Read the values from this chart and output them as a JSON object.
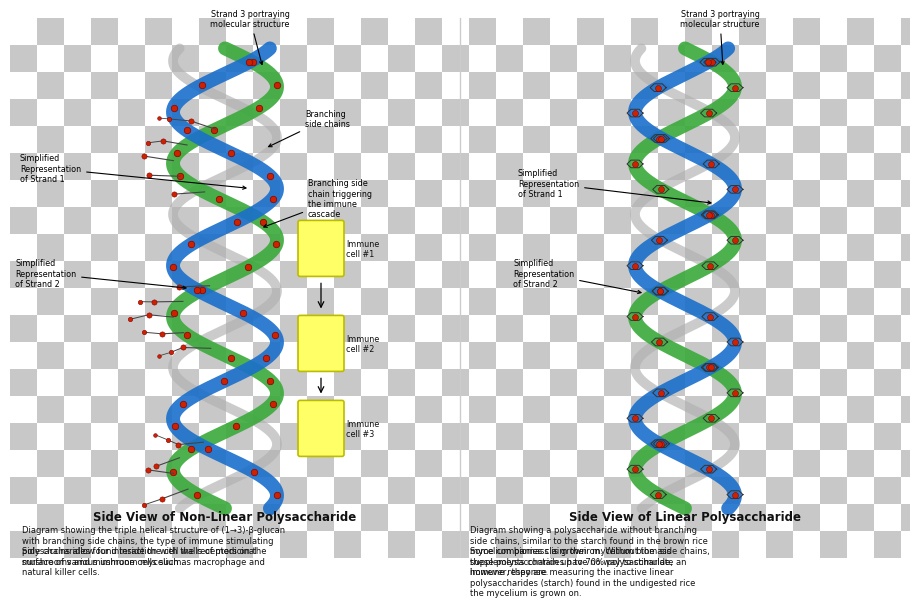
{
  "bg_checker1": "#c8c8c8",
  "bg_checker2": "#ffffff",
  "left_title": "Side View of Non-Linear Polysaccharide",
  "right_title": "Side View of Linear Polysaccharide",
  "left_desc1": "Diagram showing the triple helical structure of (1→3)-β-glucan\nwith branching side chains, the type of immune stimulating\npolysaccharides found inside the cell walls of medicinal\nmushrooms and mushroom mycelium.",
  "left_desc2": "Side chains allow for interaction with the receptors on the\nsurface of various immune cells such as macrophage and\nnatural killer cells.",
  "right_desc1": "Diagram showing a polysaccharide without branching\nside chains, similar to the starch found in the brown rice\nmycelium biomass is grown on. Without the  side chains,\nthese polysaccharides have no way to stimulate an\nimmune response.",
  "right_desc2": "Some companies claim their mycelium biomass\nsupplements contain up to 70% polysaccharide,\nhowever, they are measuring the inactive linear\npolysaccharides (starch) found in the undigested rice\nthe mycelium is grown on.",
  "helix_green": "#3aaa3a",
  "helix_blue": "#1a6fcc",
  "helix_gray": "#b0b0b0",
  "node_color": "#cc2200",
  "node_edge": "#880000",
  "immune_fill": "#ffff66",
  "immune_edge": "#bbbb00",
  "branch_color": "#444444",
  "text_color": "#111111",
  "title_fontsize": 8.5,
  "desc_fontsize": 6.0,
  "annot_fontsize": 5.8
}
